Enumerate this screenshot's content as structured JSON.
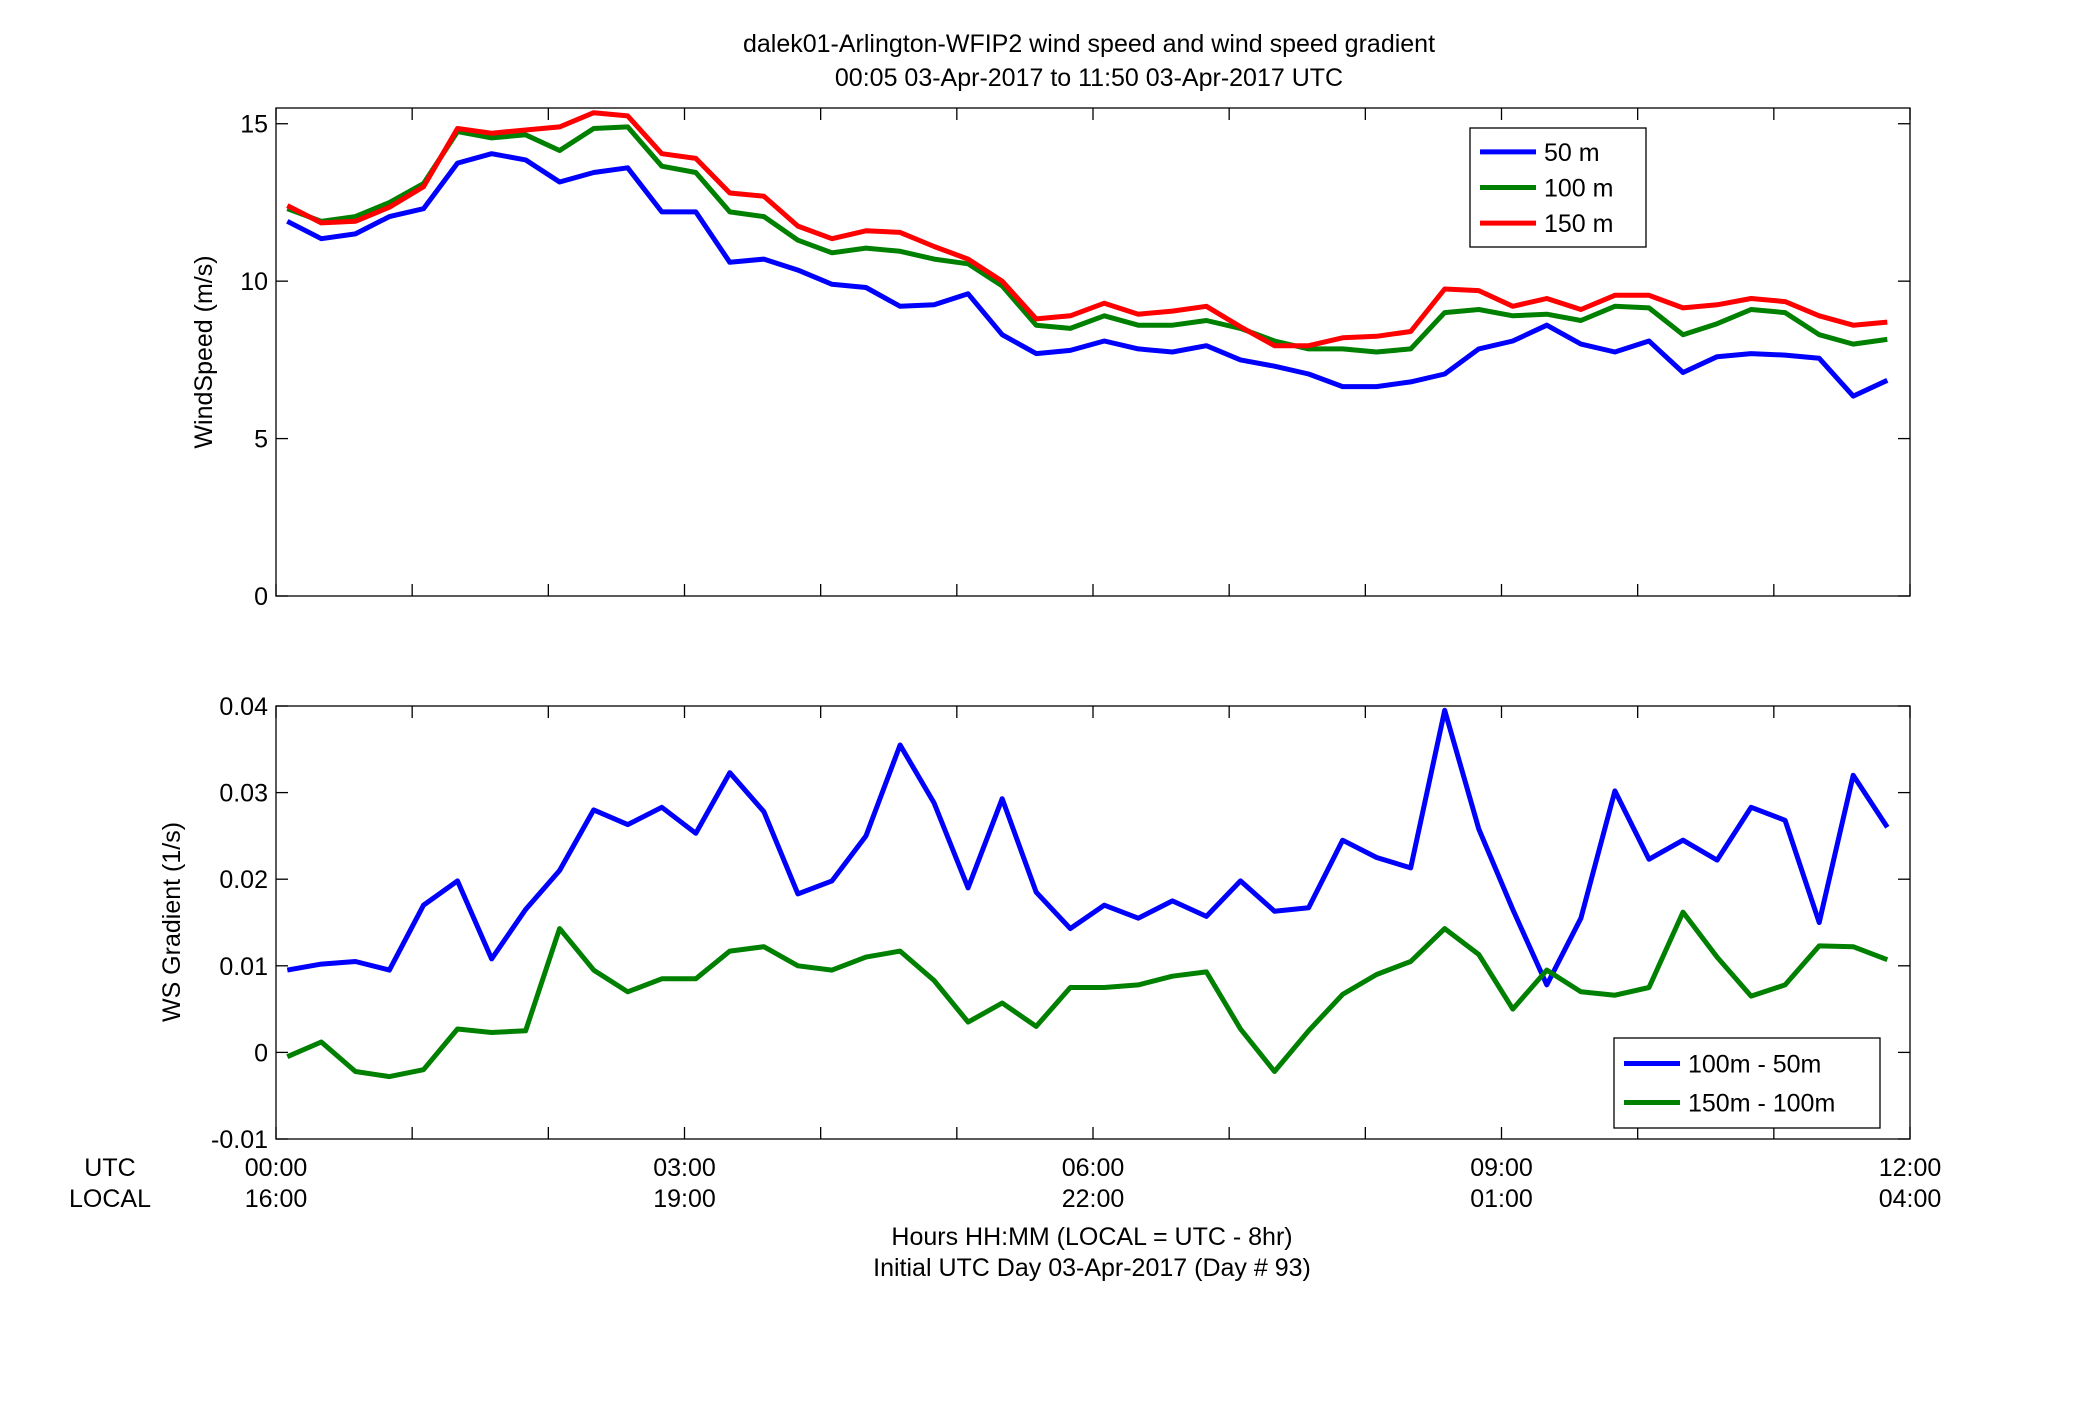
{
  "title_line1": "dalek01-Arlington-WFIP2  wind speed and wind speed gradient",
  "title_line2": "00:05 03-Apr-2017 to 11:50 03-Apr-2017  UTC",
  "footer": {
    "xlabel": "Hours HH:MM  (LOCAL = UTC - 8hr)",
    "xlabel2": "Initial UTC Day 03-Apr-2017 (Day # 93)",
    "utc_label": "UTC",
    "local_label": "LOCAL",
    "utc_ticks": [
      "00:00",
      "03:00",
      "06:00",
      "09:00",
      "12:00"
    ],
    "local_ticks": [
      "16:00",
      "19:00",
      "22:00",
      "01:00",
      "04:00"
    ]
  },
  "chart_data": [
    {
      "type": "line",
      "ylabel": "WindSpeed (m/s)",
      "xlim": [
        0,
        12
      ],
      "ylim": [
        0,
        15.5
      ],
      "yticks": [
        0,
        5,
        10,
        15
      ],
      "legend_position": "top-right",
      "grid": false,
      "x": [
        0.083,
        0.333,
        0.583,
        0.833,
        1.083,
        1.333,
        1.583,
        1.833,
        2.083,
        2.333,
        2.583,
        2.833,
        3.083,
        3.333,
        3.583,
        3.833,
        4.083,
        4.333,
        4.583,
        4.833,
        5.083,
        5.333,
        5.583,
        5.833,
        6.083,
        6.333,
        6.583,
        6.833,
        7.083,
        7.333,
        7.583,
        7.833,
        8.083,
        8.333,
        8.583,
        8.833,
        9.083,
        9.333,
        9.583,
        9.833,
        10.083,
        10.333,
        10.583,
        10.833,
        11.083,
        11.333,
        11.583,
        11.833
      ],
      "series": [
        {
          "name": "50 m",
          "color": "#0000ff",
          "values": [
            11.9,
            11.35,
            11.5,
            12.05,
            12.3,
            13.75,
            14.05,
            13.85,
            13.15,
            13.45,
            13.6,
            12.2,
            12.2,
            10.6,
            10.7,
            10.35,
            9.9,
            9.8,
            9.2,
            9.25,
            9.6,
            8.3,
            7.7,
            7.8,
            8.1,
            7.85,
            7.75,
            7.95,
            7.5,
            7.3,
            7.05,
            6.65,
            6.65,
            6.8,
            7.05,
            7.85,
            8.1,
            8.6,
            8.0,
            7.75,
            8.1,
            7.1,
            7.6,
            7.7,
            7.65,
            7.55,
            6.35,
            6.85
          ]
        },
        {
          "name": "100 m",
          "color": "#008000",
          "values": [
            12.3,
            11.9,
            12.05,
            12.5,
            13.1,
            14.75,
            14.55,
            14.65,
            14.15,
            14.85,
            14.9,
            13.65,
            13.45,
            12.2,
            12.05,
            11.3,
            10.9,
            11.05,
            10.95,
            10.7,
            10.55,
            9.85,
            8.6,
            8.5,
            8.9,
            8.6,
            8.6,
            8.75,
            8.5,
            8.1,
            7.85,
            7.85,
            7.75,
            7.85,
            9.0,
            9.1,
            8.9,
            8.95,
            8.75,
            9.2,
            9.15,
            8.3,
            8.65,
            9.1,
            9.0,
            8.3,
            8.0,
            8.15
          ]
        },
        {
          "name": "150 m",
          "color": "#ff0000",
          "values": [
            12.4,
            11.85,
            11.9,
            12.35,
            13.0,
            14.85,
            14.7,
            14.8,
            14.9,
            15.35,
            15.25,
            14.05,
            13.9,
            12.8,
            12.7,
            11.75,
            11.35,
            11.6,
            11.55,
            11.1,
            10.7,
            10.0,
            8.8,
            8.9,
            9.3,
            8.95,
            9.05,
            9.2,
            8.55,
            7.95,
            7.95,
            8.2,
            8.25,
            8.4,
            9.75,
            9.7,
            9.2,
            9.45,
            9.1,
            9.55,
            9.55,
            9.15,
            9.25,
            9.45,
            9.35,
            8.9,
            8.6,
            8.7
          ]
        }
      ]
    },
    {
      "type": "line",
      "ylabel": "WS Gradient (1/s)",
      "xlim": [
        0,
        12
      ],
      "ylim": [
        -0.01,
        0.04
      ],
      "yticks": [
        -0.01,
        0,
        0.01,
        0.02,
        0.03,
        0.04
      ],
      "ytick_labels": [
        "-0.01",
        "0",
        "0.01",
        "0.02",
        "0.03",
        "0.04"
      ],
      "legend_position": "bottom-right",
      "grid": false,
      "x": [
        0.083,
        0.333,
        0.583,
        0.833,
        1.083,
        1.333,
        1.583,
        1.833,
        2.083,
        2.333,
        2.583,
        2.833,
        3.083,
        3.333,
        3.583,
        3.833,
        4.083,
        4.333,
        4.583,
        4.833,
        5.083,
        5.333,
        5.583,
        5.833,
        6.083,
        6.333,
        6.583,
        6.833,
        7.083,
        7.333,
        7.583,
        7.833,
        8.083,
        8.333,
        8.583,
        8.833,
        9.083,
        9.333,
        9.583,
        9.833,
        10.083,
        10.333,
        10.583,
        10.833,
        11.083,
        11.333,
        11.583,
        11.833
      ],
      "series": [
        {
          "name": "100m - 50m",
          "color": "#0000ff",
          "values": [
            0.0095,
            0.0102,
            0.0105,
            0.0095,
            0.017,
            0.0198,
            0.0108,
            0.0165,
            0.021,
            0.028,
            0.0263,
            0.0283,
            0.0253,
            0.0323,
            0.0278,
            0.0183,
            0.0198,
            0.025,
            0.0355,
            0.0288,
            0.019,
            0.0293,
            0.0185,
            0.0143,
            0.017,
            0.0155,
            0.0175,
            0.0157,
            0.0198,
            0.0163,
            0.0167,
            0.0245,
            0.0225,
            0.0213,
            0.0395,
            0.0258,
            0.0165,
            0.0078,
            0.0155,
            0.0302,
            0.0223,
            0.0245,
            0.0222,
            0.0283,
            0.0268,
            0.015,
            0.032,
            0.026
          ]
        },
        {
          "name": "150m - 100m",
          "color": "#008000",
          "values": [
            -0.0005,
            0.0012,
            -0.0022,
            -0.0028,
            -0.002,
            0.0027,
            0.0023,
            0.0025,
            0.0143,
            0.0095,
            0.007,
            0.0085,
            0.0085,
            0.0117,
            0.0122,
            0.01,
            0.0095,
            0.011,
            0.0117,
            0.0083,
            0.0035,
            0.0057,
            0.003,
            0.0075,
            0.0075,
            0.0078,
            0.0088,
            0.0093,
            0.0027,
            -0.0022,
            0.0025,
            0.0067,
            0.009,
            0.0105,
            0.0143,
            0.0113,
            0.005,
            0.0095,
            0.007,
            0.0066,
            0.0075,
            0.0162,
            0.011,
            0.0065,
            0.0078,
            0.0123,
            0.0122,
            0.0107
          ]
        }
      ]
    }
  ]
}
